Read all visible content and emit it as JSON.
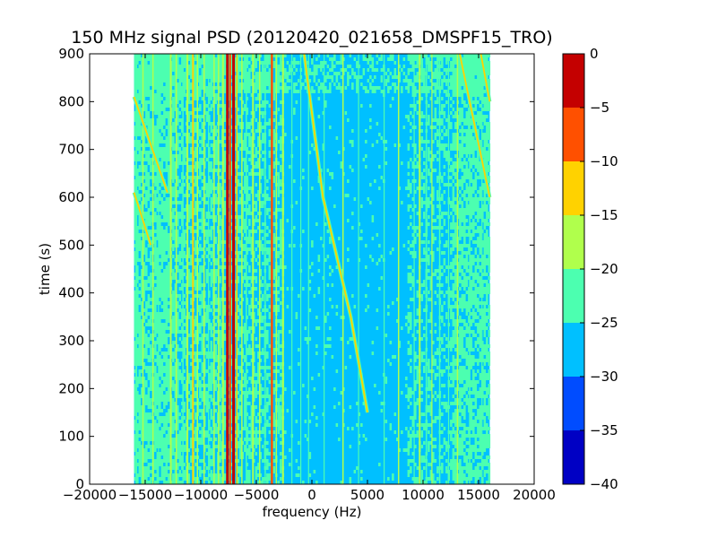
{
  "chart_data": {
    "type": "heatmap",
    "title": "150 MHz signal PSD (20120420_021658_DMSPF15_TRO)",
    "xlabel": "frequency (Hz)",
    "ylabel": "time (s)",
    "xlim": [
      -20000,
      20000
    ],
    "ylim": [
      0,
      900
    ],
    "x_ticks": [
      -20000,
      -15000,
      -10000,
      -5000,
      0,
      5000,
      10000,
      15000,
      20000
    ],
    "x_tick_labels": [
      "−20000",
      "−15000",
      "−10000",
      "−5000",
      "0",
      "5000",
      "10000",
      "15000",
      "20000"
    ],
    "y_ticks": [
      0,
      100,
      200,
      300,
      400,
      500,
      600,
      700,
      800,
      900
    ],
    "y_tick_labels": [
      "0",
      "100",
      "200",
      "300",
      "400",
      "500",
      "600",
      "700",
      "800",
      "900"
    ],
    "data_extent_x": [
      -16000,
      16000
    ],
    "data_extent_y": [
      0,
      900
    ],
    "colorbar": {
      "levels": [
        -40,
        -35,
        -30,
        -25,
        -20,
        -15,
        -10,
        -5,
        0
      ],
      "tick_labels": [
        "−40",
        "−35",
        "−30",
        "−25",
        "−20",
        "−15",
        "−10",
        "−5",
        "0"
      ],
      "colors": [
        "#0000c4",
        "#004cff",
        "#00c0ff",
        "#4cffb0",
        "#b0ff4c",
        "#ffd200",
        "#ff5000",
        "#c40000"
      ]
    },
    "background_level": "-30 to -25",
    "features": {
      "strong_vertical_lines": [
        {
          "freq": -7500,
          "level": "-5 to 0"
        },
        {
          "freq": -7000,
          "level": "-5 to 0"
        },
        {
          "freq": -3500,
          "level": "-10 to -5"
        },
        {
          "freq": -10500,
          "level": "-15 to -10"
        }
      ],
      "chirp_traces": [
        {
          "points": [
            [
              -16000,
              810
            ],
            [
              -13000,
              610
            ]
          ]
        },
        {
          "points": [
            [
              -16000,
              610
            ],
            [
              -14500,
              500
            ]
          ]
        },
        {
          "points": [
            [
              -700,
              900
            ],
            [
              1000,
              600
            ],
            [
              3500,
              350
            ],
            [
              5000,
              150
            ]
          ]
        },
        {
          "points": [
            [
              13300,
              900
            ],
            [
              16000,
              600
            ]
          ]
        },
        {
          "points": [
            [
              15200,
              900
            ],
            [
              16000,
              800
            ]
          ]
        }
      ]
    }
  }
}
